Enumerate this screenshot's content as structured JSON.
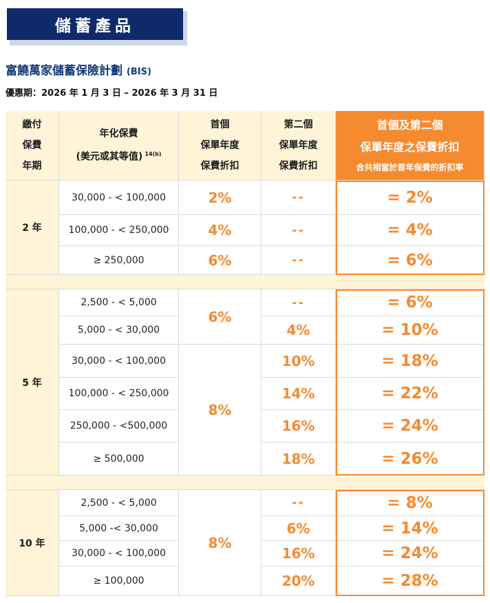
{
  "banner": {
    "title": "儲蓄產品"
  },
  "plan": {
    "title": "富饒萬家儲蓄保險計劃",
    "code": "(BIS)"
  },
  "offer_period": "優惠期：2026 年 1 月 3 日 – 2026 年 3 月 31 日",
  "headers": {
    "term": [
      "繳付",
      "保費",
      "年期"
    ],
    "premium": [
      "年化保費",
      "(美元或其等值)"
    ],
    "premium_note": "14(b)",
    "first_year": [
      "首個",
      "保單年度",
      "保費折扣"
    ],
    "second_year": [
      "第二個",
      "保單年度",
      "保費折扣"
    ],
    "combined": [
      "首個及第二個",
      "保單年度之保費折扣",
      "合共相當於首年保費的折扣率"
    ]
  },
  "groups": [
    {
      "term": "2 年",
      "rows": [
        {
          "premium": "30,000 - < 100,000",
          "first": "2%",
          "second": "--",
          "combined": "= 2%"
        },
        {
          "premium": "100,000 - < 250,000",
          "first": "4%",
          "second": "--",
          "combined": "= 4%"
        },
        {
          "premium": "≥ 250,000",
          "first": "6%",
          "second": "--",
          "combined": "= 6%"
        }
      ]
    },
    {
      "term": "5 年",
      "first_merged": [
        "6%",
        "8%"
      ],
      "rows": [
        {
          "premium": "2,500 - < 5,000",
          "second": "--",
          "combined": "= 6%"
        },
        {
          "premium": "5,000 - < 30,000",
          "second": "4%",
          "combined": "= 10%"
        },
        {
          "premium": "30,000 - < 100,000",
          "second": "10%",
          "combined": "= 18%"
        },
        {
          "premium": "100,000 - < 250,000",
          "second": "14%",
          "combined": "= 22%"
        },
        {
          "premium": "250,000 - <500,000",
          "second": "16%",
          "combined": "= 24%"
        },
        {
          "premium": "≥ 500,000",
          "second": "18%",
          "combined": "= 26%"
        }
      ]
    },
    {
      "term": "10 年",
      "first_merged": [
        "8%"
      ],
      "rows": [
        {
          "premium": "2,500 - < 5,000",
          "second": "--",
          "combined": "= 8%"
        },
        {
          "premium": "5,000 -< 30,000",
          "second": "6%",
          "combined": "= 14%"
        },
        {
          "premium": "30,000 - < 100,000",
          "second": "16%",
          "combined": "= 24%"
        },
        {
          "premium": "≥ 100,000",
          "second": "20%",
          "combined": "= 28%"
        }
      ]
    }
  ],
  "colors": {
    "navy": "#0f2a6b",
    "orange": "#f58a2f",
    "cream": "#fff4d8"
  }
}
